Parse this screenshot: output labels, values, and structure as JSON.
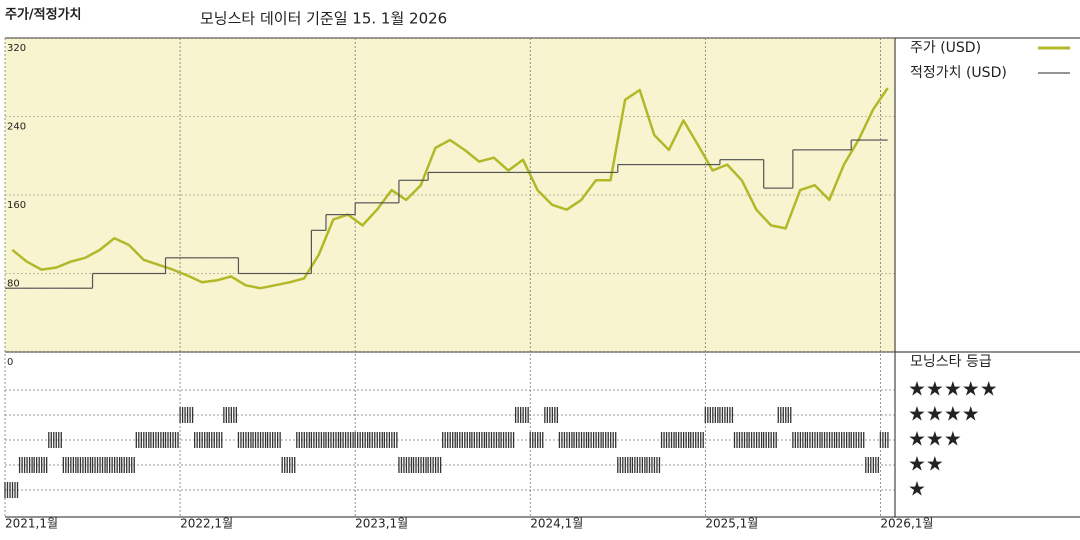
{
  "chart_data": [
    {
      "type": "line",
      "title": "주가/적정가치",
      "subtitle": "모닝스타 데이터 기준일 15. 1월 2026",
      "x": [
        "2021-01",
        "2021-02",
        "2021-03",
        "2021-04",
        "2021-05",
        "2021-06",
        "2021-07",
        "2021-08",
        "2021-09",
        "2021-10",
        "2021-11",
        "2021-12",
        "2022-01",
        "2022-02",
        "2022-03",
        "2022-04",
        "2022-05",
        "2022-06",
        "2022-07",
        "2022-08",
        "2022-09",
        "2022-10",
        "2022-11",
        "2022-12",
        "2023-01",
        "2023-02",
        "2023-03",
        "2023-04",
        "2023-05",
        "2023-06",
        "2023-07",
        "2023-08",
        "2023-09",
        "2023-10",
        "2023-11",
        "2023-12",
        "2024-01",
        "2024-02",
        "2024-03",
        "2024-04",
        "2024-05",
        "2024-06",
        "2024-07",
        "2024-08",
        "2024-09",
        "2024-10",
        "2024-11",
        "2024-12",
        "2025-01",
        "2025-02",
        "2025-03",
        "2025-04",
        "2025-05",
        "2025-06",
        "2025-07",
        "2025-08",
        "2025-09",
        "2025-10",
        "2025-11",
        "2025-12",
        "2026-01"
      ],
      "series": [
        {
          "name": "주가 (USD)",
          "color": "#b3b829",
          "values": [
            104,
            92,
            84,
            86,
            92,
            96,
            104,
            116,
            109,
            94,
            89,
            84,
            78,
            71,
            73,
            77,
            68,
            65,
            68,
            71,
            75,
            99,
            135,
            140,
            129,
            145,
            165,
            155,
            170,
            208,
            216,
            206,
            194,
            198,
            185,
            196,
            165,
            150,
            145,
            155,
            175,
            175,
            257,
            267,
            221,
            206,
            236,
            211,
            185,
            191,
            175,
            145,
            129,
            126,
            165,
            170,
            155,
            191,
            216,
            247,
            269
          ]
        },
        {
          "name": "적정가치 (USD)",
          "color": "#555555",
          "values": [
            65,
            65,
            65,
            65,
            65,
            65,
            80,
            80,
            80,
            80,
            80,
            96,
            96,
            96,
            96,
            96,
            80,
            80,
            80,
            80,
            80,
            124,
            140,
            140,
            152,
            152,
            152,
            175,
            175,
            183,
            183,
            183,
            183,
            183,
            183,
            183,
            183,
            183,
            183,
            183,
            183,
            183,
            191,
            191,
            191,
            191,
            191,
            191,
            191,
            196,
            196,
            196,
            167,
            167,
            206,
            206,
            206,
            206,
            216,
            216,
            216
          ]
        }
      ],
      "xlim": [
        "2021-01",
        "2026-02"
      ],
      "xticks": [
        {
          "value": "2021-01",
          "label": "2021,1월"
        },
        {
          "value": "2022-01",
          "label": "2022,1월"
        },
        {
          "value": "2023-01",
          "label": "2023,1월"
        },
        {
          "value": "2024-01",
          "label": "2024,1월"
        },
        {
          "value": "2025-01",
          "label": "2025,1월"
        },
        {
          "value": "2026-01",
          "label": "2026,1월"
        }
      ],
      "ylim": [
        0,
        320
      ],
      "yticks": [
        0,
        80,
        160,
        240,
        320
      ],
      "grid": true
    },
    {
      "type": "rating",
      "title": "모닝스타 등급",
      "x": [
        "2021-01",
        "2021-02",
        "2021-03",
        "2021-04",
        "2021-05",
        "2021-06",
        "2021-07",
        "2021-08",
        "2021-09",
        "2021-10",
        "2021-11",
        "2021-12",
        "2022-01",
        "2022-02",
        "2022-03",
        "2022-04",
        "2022-05",
        "2022-06",
        "2022-07",
        "2022-08",
        "2022-09",
        "2022-10",
        "2022-11",
        "2022-12",
        "2023-01",
        "2023-02",
        "2023-03",
        "2023-04",
        "2023-05",
        "2023-06",
        "2023-07",
        "2023-08",
        "2023-09",
        "2023-10",
        "2023-11",
        "2023-12",
        "2024-01",
        "2024-02",
        "2024-03",
        "2024-04",
        "2024-05",
        "2024-06",
        "2024-07",
        "2024-08",
        "2024-09",
        "2024-10",
        "2024-11",
        "2024-12",
        "2025-01",
        "2025-02",
        "2025-03",
        "2025-04",
        "2025-05",
        "2025-06",
        "2025-07",
        "2025-08",
        "2025-09",
        "2025-10",
        "2025-11",
        "2025-12",
        "2026-01"
      ],
      "values": [
        1,
        2,
        2,
        3,
        2,
        2,
        2,
        2,
        2,
        3,
        3,
        3,
        4,
        3,
        3,
        4,
        3,
        3,
        3,
        2,
        3,
        3,
        3,
        3,
        3,
        3,
        3,
        2,
        2,
        2,
        3,
        3,
        3,
        3,
        3,
        4,
        3,
        4,
        3,
        3,
        3,
        3,
        2,
        2,
        2,
        3,
        3,
        3,
        4,
        4,
        3,
        3,
        3,
        4,
        3,
        3,
        3,
        3,
        3,
        2,
        3
      ],
      "color": "#333333",
      "yticks": [
        {
          "value": 5,
          "label": "★★★★★"
        },
        {
          "value": 4,
          "label": "★★★★"
        },
        {
          "value": 3,
          "label": "★★★"
        },
        {
          "value": 2,
          "label": "★★"
        },
        {
          "value": 1,
          "label": "★"
        }
      ]
    }
  ]
}
